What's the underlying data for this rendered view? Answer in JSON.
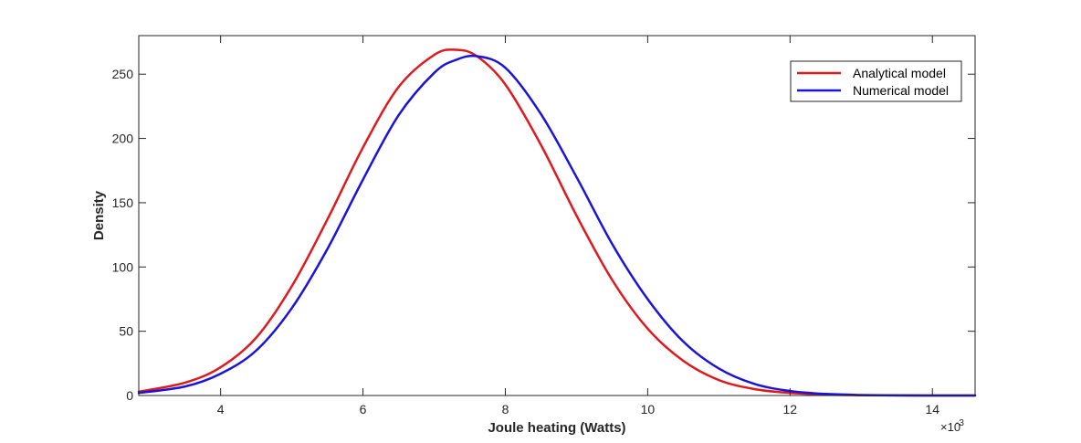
{
  "chart_data": {
    "type": "line",
    "title": "",
    "xlabel": "Joule heating (Watts)",
    "ylabel": "Density",
    "x_exponent_label": "×10",
    "x_exponent_power": "-3",
    "xlim": [
      2.85,
      14.6
    ],
    "ylim": [
      0,
      280
    ],
    "x_ticks": [
      4,
      6,
      8,
      10,
      12,
      14
    ],
    "y_ticks": [
      0,
      50,
      100,
      150,
      200,
      250
    ],
    "grid": false,
    "legend_position": "top-right",
    "series": [
      {
        "name": "Analytical model",
        "color": "#e0191d",
        "x": [
          2.85,
          3.5,
          4.0,
          4.5,
          5.0,
          5.5,
          6.0,
          6.5,
          7.0,
          7.3,
          7.6,
          8.0,
          8.5,
          9.0,
          9.5,
          10.0,
          10.5,
          11.0,
          11.5,
          12.0,
          12.5,
          13.0,
          13.5,
          14.0,
          14.6
        ],
        "y": [
          3,
          10,
          22,
          45,
          85,
          137,
          193,
          240,
          265,
          269,
          264,
          242,
          195,
          140,
          90,
          52,
          27,
          12,
          5,
          2,
          0.7,
          0.2,
          0.05,
          0.01,
          0
        ]
      },
      {
        "name": "Numerical model",
        "color": "#1a14d9",
        "x": [
          2.85,
          3.5,
          4.0,
          4.5,
          5.0,
          5.5,
          6.0,
          6.5,
          7.0,
          7.3,
          7.6,
          8.0,
          8.5,
          9.0,
          9.5,
          10.0,
          10.5,
          11.0,
          11.5,
          12.0,
          12.5,
          13.0,
          13.5,
          14.0,
          14.6
        ],
        "y": [
          2,
          7,
          17,
          35,
          68,
          114,
          168,
          218,
          251,
          261,
          264,
          255,
          219,
          170,
          118,
          75,
          42,
          21,
          9,
          3.5,
          1.2,
          0.4,
          0.1,
          0.02,
          0
        ]
      }
    ]
  }
}
